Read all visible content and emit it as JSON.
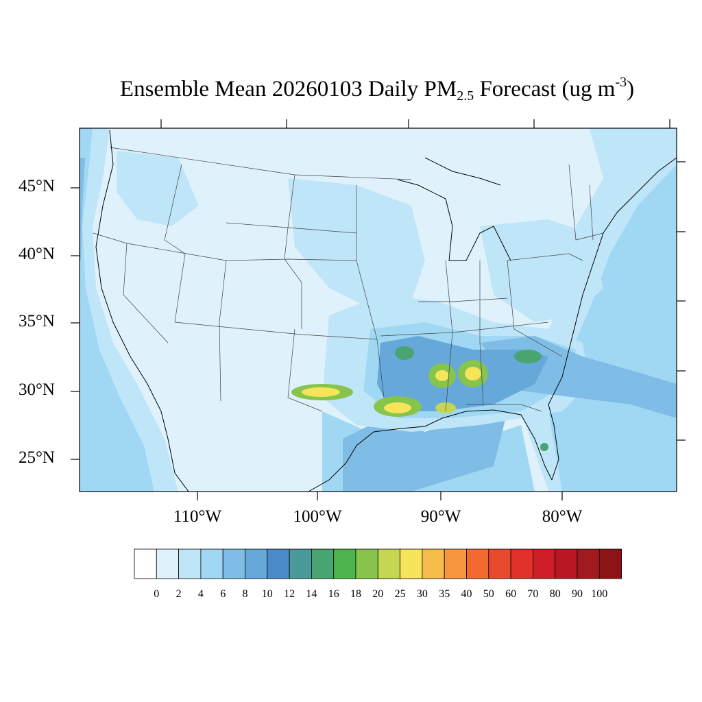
{
  "title": {
    "prefix": "Ensemble Mean 20260103 Daily PM",
    "subscript": "2.5",
    "middle": " Forecast (ug m",
    "superscript": "-3",
    "suffix": ")"
  },
  "lat_labels": [
    "45°N",
    "40°N",
    "35°N",
    "30°N",
    "25°N"
  ],
  "lon_labels": [
    "110°W",
    "100°W",
    "90°W",
    "80°W"
  ],
  "colorbar": {
    "labels": [
      "0",
      "2",
      "4",
      "6",
      "8",
      "10",
      "12",
      "14",
      "16",
      "18",
      "20",
      "25",
      "30",
      "35",
      "40",
      "50",
      "60",
      "70",
      "80",
      "90",
      "100"
    ],
    "colors": [
      "#ffffff",
      "#dff2fb",
      "#bfe5f8",
      "#a0d8f4",
      "#7fbde6",
      "#66a8da",
      "#4a8ac8",
      "#4a9a9a",
      "#48a470",
      "#4cb44a",
      "#86c44c",
      "#c4d654",
      "#f6e45a",
      "#f6bc4a",
      "#f6963e",
      "#f26a2e",
      "#e84a2c",
      "#e0302a",
      "#d01e28",
      "#b81822",
      "#a01a1e",
      "#8c1416"
    ]
  },
  "map": {
    "background_color": "#dff2fb",
    "ocean_color": "#a0d8f4",
    "coast_color": "#7fbde6"
  }
}
